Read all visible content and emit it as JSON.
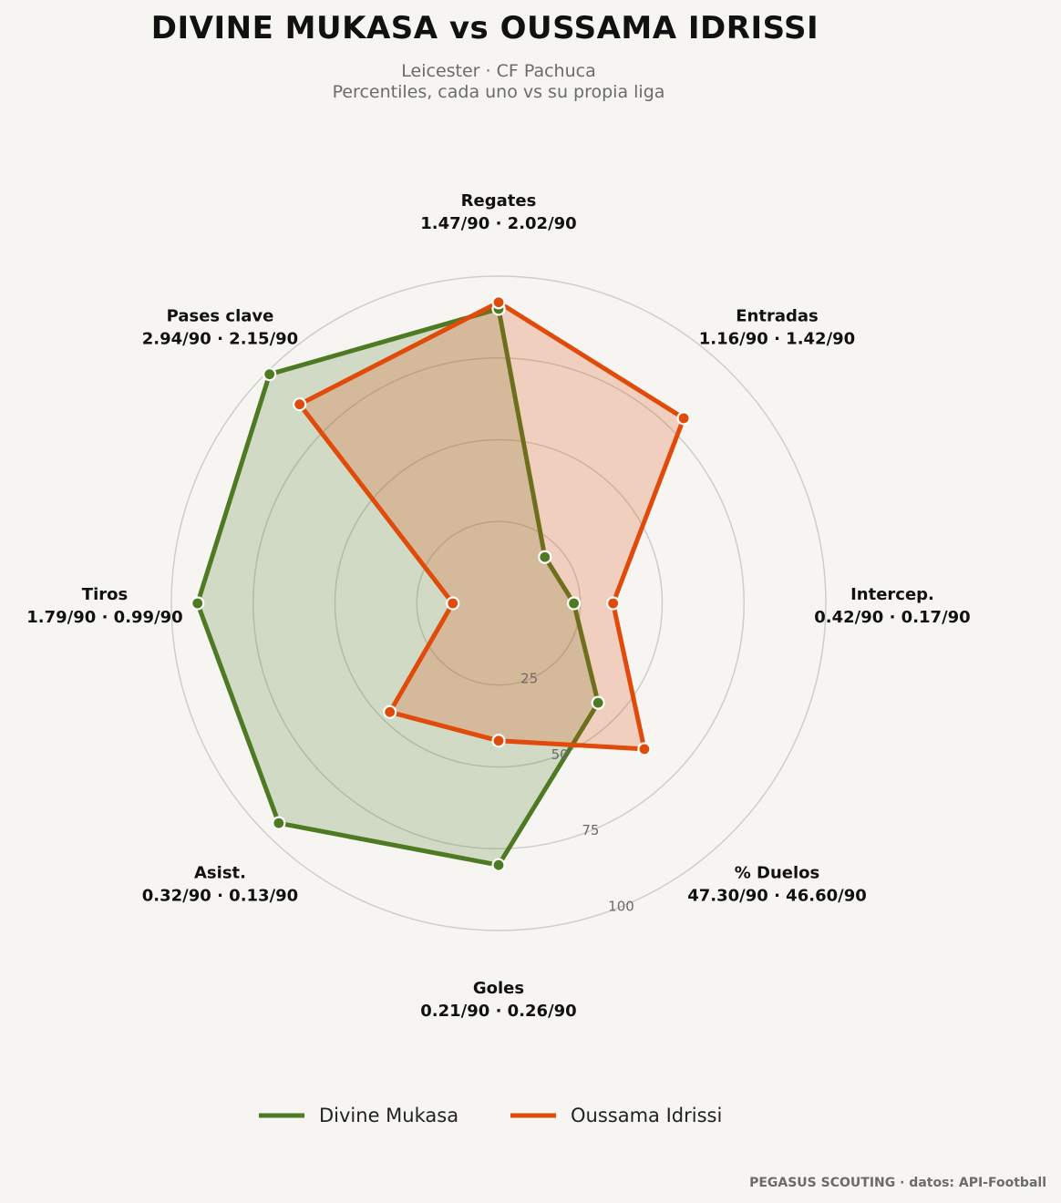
{
  "chart_data": {
    "type": "radar",
    "title": "DIVINE MUKASA  vs  OUSSAMA IDRISSI",
    "subtitle_lines": [
      "Leicester · CF Pachuca",
      "Percentiles, cada uno vs su propia liga"
    ],
    "categories": [
      {
        "name": "Regates",
        "values_text": "1.47/90 · 2.02/90"
      },
      {
        "name": "Entradas",
        "values_text": "1.16/90 · 1.42/90"
      },
      {
        "name": "Intercep.",
        "values_text": "0.42/90 · 0.17/90"
      },
      {
        "name": "% Duelos",
        "values_text": "47.30/90 · 46.60/90"
      },
      {
        "name": "Goles",
        "values_text": "0.21/90 · 0.26/90"
      },
      {
        "name": "Asist.",
        "values_text": "0.32/90 · 0.13/90"
      },
      {
        "name": "Tiros",
        "values_text": "1.79/90 · 0.99/90"
      },
      {
        "name": "Pases clave",
        "values_text": "2.94/90 · 2.15/90"
      }
    ],
    "series": [
      {
        "name": "Divine Mukasa",
        "color": "#4d7a23",
        "values": [
          90,
          20,
          23,
          43,
          80,
          95,
          92,
          99
        ]
      },
      {
        "name": "Oussama Idrissi",
        "color": "#e04a0a",
        "values": [
          92,
          80,
          35,
          63,
          42,
          47,
          14,
          86
        ]
      }
    ],
    "rlim": [
      0,
      100
    ],
    "rticks": [
      25,
      50,
      75,
      100
    ],
    "grid": true,
    "legend_position": "bottom-center"
  },
  "footer": {
    "credit": "PEGASUS SCOUTING · datos: API-Football"
  }
}
